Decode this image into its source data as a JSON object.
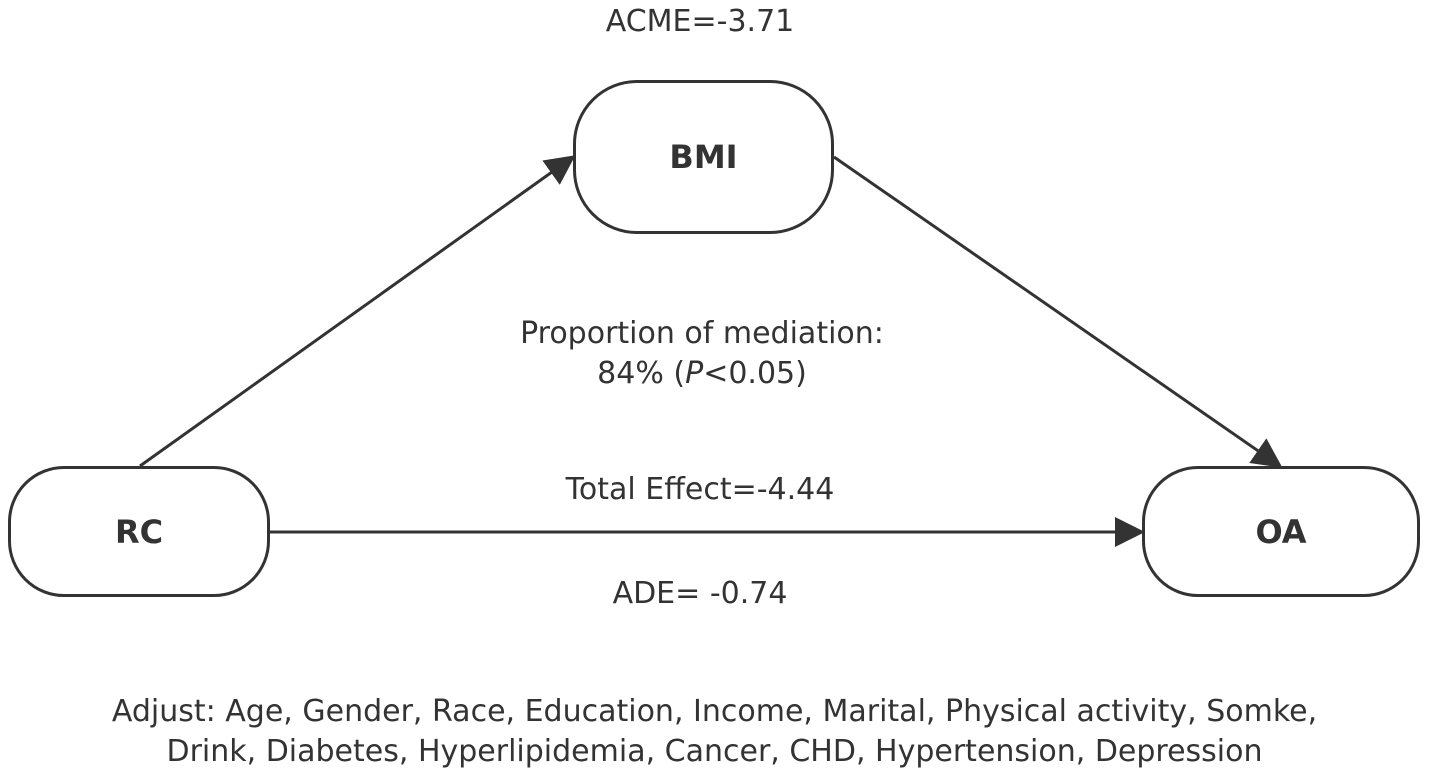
{
  "nodes": {
    "mediator": "BMI",
    "exposure": "RC",
    "outcome": "OA"
  },
  "labels": {
    "acme": "ACME=-3.71",
    "mediation_line1": "Proportion of mediation:",
    "mediation_pct": "84% (",
    "mediation_p": "P",
    "mediation_pval": "<0.05)",
    "total_effect": "Total Effect=-4.44",
    "ade": "ADE= -0.74"
  },
  "footnote": {
    "line1": "Adjust: Age, Gender, Race, Education, Income, Marital, Physical activity, Somke,",
    "line2": "Drink, Diabetes, Hyperlipidemia, Cancer, CHD, Hypertension, Depression"
  },
  "colors": {
    "stroke": "#333333",
    "background": "#ffffff"
  }
}
